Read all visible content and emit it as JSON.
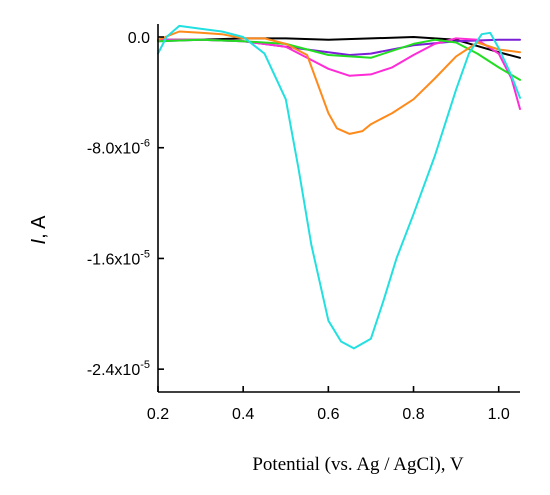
{
  "chart_data": {
    "type": "line",
    "title": "",
    "xlabel": "Potential (vs. Ag / AgCl), V",
    "ylabel_italic": "I",
    "ylabel_rest": ", A",
    "xlim": [
      0.2,
      1.05
    ],
    "ylim": [
      -2.5e-05,
      0.0
    ],
    "x_ticks": [
      0.2,
      0.4,
      0.6,
      0.8,
      1.0
    ],
    "x_tick_labels": [
      "0.2",
      "0.4",
      "0.6",
      "0.8",
      "1.0"
    ],
    "y_ticks": [
      0.0,
      -8e-06,
      -1.6e-05,
      -2.4e-05
    ],
    "y_tick_labels": [
      "0.0",
      "-8.0x10-6",
      "-1.6x10-5",
      "-2.4x10-5"
    ],
    "y_tick_mantissa": [
      "0.0",
      "-8.0x10",
      "-1.6x10",
      "-2.4x10"
    ],
    "y_tick_exponent": [
      "",
      "-6",
      "-5",
      "-5"
    ],
    "grid": false,
    "legend": "none",
    "series": [
      {
        "color": "#000000",
        "x": [
          0.2,
          0.3,
          0.4,
          0.5,
          0.6,
          0.7,
          0.8,
          0.9,
          1.0,
          1.05
        ],
        "y": [
          -2e-07,
          -2e-07,
          -1e-07,
          -1e-07,
          -2e-07,
          -1e-07,
          0,
          -2e-07,
          -1.1e-06,
          -1.5e-06
        ]
      },
      {
        "color": "#7a1fd6",
        "x": [
          0.2,
          0.3,
          0.4,
          0.5,
          0.6,
          0.65,
          0.7,
          0.8,
          0.9,
          1.0,
          1.05
        ],
        "y": [
          -3e-07,
          -2e-07,
          -3e-07,
          -7e-07,
          -1.1e-06,
          -1.3e-06,
          -1.2e-06,
          -6e-07,
          -3e-07,
          -2e-07,
          -2e-07
        ]
      },
      {
        "color": "#ff2bd6",
        "x": [
          0.2,
          0.3,
          0.4,
          0.5,
          0.55,
          0.6,
          0.65,
          0.7,
          0.75,
          0.8,
          0.85,
          0.9,
          0.95,
          1.0,
          1.03,
          1.05
        ],
        "y": [
          -2e-07,
          -2e-07,
          -3e-07,
          -7e-07,
          -1.5e-06,
          -2.3e-06,
          -2.8e-06,
          -2.7e-06,
          -2.2e-06,
          -1.3e-06,
          -5e-07,
          -1e-07,
          -2e-07,
          -1.2e-06,
          -3e-06,
          -5.2e-06
        ]
      },
      {
        "color": "#22dd22",
        "x": [
          0.2,
          0.3,
          0.4,
          0.5,
          0.6,
          0.7,
          0.8,
          0.85,
          0.9,
          0.95,
          1.0,
          1.05
        ],
        "y": [
          -3e-07,
          -2e-07,
          -3e-07,
          -5e-07,
          -1.3e-06,
          -1.5e-06,
          -5e-07,
          -2e-07,
          -4e-07,
          -1.2e-06,
          -2.2e-06,
          -3.1e-06
        ]
      },
      {
        "color": "#ff8a1c",
        "x": [
          0.2,
          0.25,
          0.3,
          0.35,
          0.4,
          0.45,
          0.5,
          0.55,
          0.6,
          0.62,
          0.65,
          0.68,
          0.7,
          0.75,
          0.8,
          0.85,
          0.9,
          0.95,
          1.0,
          1.05
        ],
        "y": [
          -2e-07,
          4e-07,
          3e-07,
          2e-07,
          -1e-07,
          -1e-07,
          -5e-07,
          -1.3e-06,
          -5.5e-06,
          -6.6e-06,
          -7e-06,
          -6.8e-06,
          -6.3e-06,
          -5.5e-06,
          -4.5e-06,
          -3e-06,
          -1.4e-06,
          -4e-07,
          -9e-07,
          -1.1e-06
        ]
      },
      {
        "color": "#22e0e0",
        "x": [
          0.2,
          0.22,
          0.25,
          0.3,
          0.35,
          0.4,
          0.45,
          0.5,
          0.53,
          0.56,
          0.6,
          0.63,
          0.66,
          0.7,
          0.73,
          0.76,
          0.8,
          0.85,
          0.9,
          0.93,
          0.96,
          0.98,
          1.0,
          1.03,
          1.05
        ],
        "y": [
          -1.2e-06,
          0,
          8e-07,
          6e-07,
          4e-07,
          0,
          -1.2e-06,
          -4.5e-06,
          -9.5e-06,
          -1.5e-05,
          -2.05e-05,
          -2.2e-05,
          -2.25e-05,
          -2.18e-05,
          -1.9e-05,
          -1.6e-05,
          -1.28e-05,
          -8.6e-06,
          -3.8e-06,
          -1.2e-06,
          2e-07,
          3e-07,
          -8e-07,
          -2.8e-06,
          -4.4e-06
        ]
      }
    ]
  }
}
